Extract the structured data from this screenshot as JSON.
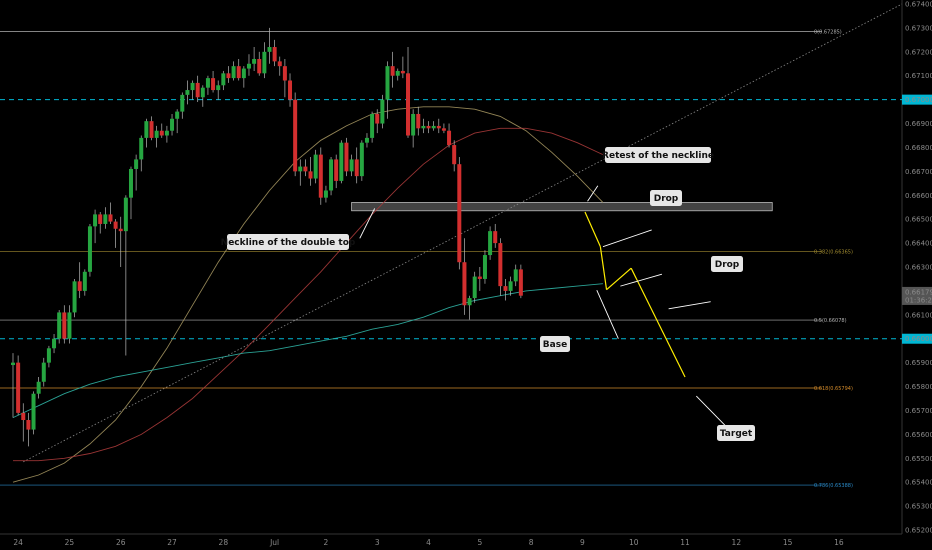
{
  "chart_data": {
    "type": "candlestick",
    "grid": false,
    "y_range": [
      0.652,
      0.674
    ],
    "y_ticks": [
      "0.67400",
      "0.67300",
      "0.67200",
      "0.67100",
      "0.67000",
      "0.66900",
      "0.66800",
      "0.66700",
      "0.66600",
      "0.66500",
      "0.66400",
      "0.66300",
      "0.66200",
      "0.66100",
      "0.66000",
      "0.65900",
      "0.65800",
      "0.65700",
      "0.65600",
      "0.65500",
      "0.65400",
      "0.65300",
      "0.65200"
    ],
    "x_labels": [
      {
        "label": "24",
        "bar": 1
      },
      {
        "label": "25",
        "bar": 11
      },
      {
        "label": "26",
        "bar": 21
      },
      {
        "label": "27",
        "bar": 31
      },
      {
        "label": "28",
        "bar": 41
      },
      {
        "label": "Jul",
        "bar": 51
      },
      {
        "label": "2",
        "bar": 61
      },
      {
        "label": "3",
        "bar": 71
      },
      {
        "label": "4",
        "bar": 81
      },
      {
        "label": "5",
        "bar": 91
      },
      {
        "label": "8",
        "bar": 101
      },
      {
        "label": "9",
        "bar": 111
      },
      {
        "label": "10",
        "bar": 121
      },
      {
        "label": "11",
        "bar": 131
      },
      {
        "label": "12",
        "bar": 141
      },
      {
        "label": "15",
        "bar": 151
      },
      {
        "label": "16",
        "bar": 161
      }
    ],
    "candles": [
      {
        "o": 0.6589,
        "h": 0.6594,
        "l": 0.6567,
        "c": 0.659
      },
      {
        "o": 0.659,
        "h": 0.6593,
        "l": 0.6568,
        "c": 0.6569
      },
      {
        "o": 0.6569,
        "h": 0.6573,
        "l": 0.6557,
        "c": 0.6566
      },
      {
        "o": 0.6566,
        "h": 0.6569,
        "l": 0.6555,
        "c": 0.6562
      },
      {
        "o": 0.6562,
        "h": 0.6578,
        "l": 0.656,
        "c": 0.6577
      },
      {
        "o": 0.6577,
        "h": 0.6584,
        "l": 0.6575,
        "c": 0.6582
      },
      {
        "o": 0.6582,
        "h": 0.6592,
        "l": 0.658,
        "c": 0.659
      },
      {
        "o": 0.659,
        "h": 0.6597,
        "l": 0.6588,
        "c": 0.6596
      },
      {
        "o": 0.6596,
        "h": 0.6602,
        "l": 0.6594,
        "c": 0.66
      },
      {
        "o": 0.66,
        "h": 0.6612,
        "l": 0.6598,
        "c": 0.6611
      },
      {
        "o": 0.6611,
        "h": 0.6614,
        "l": 0.6598,
        "c": 0.66
      },
      {
        "o": 0.66,
        "h": 0.6614,
        "l": 0.6598,
        "c": 0.6611
      },
      {
        "o": 0.6611,
        "h": 0.6625,
        "l": 0.6609,
        "c": 0.6624
      },
      {
        "o": 0.6624,
        "h": 0.6632,
        "l": 0.6617,
        "c": 0.662
      },
      {
        "o": 0.662,
        "h": 0.6629,
        "l": 0.6618,
        "c": 0.6628
      },
      {
        "o": 0.6628,
        "h": 0.6648,
        "l": 0.6626,
        "c": 0.6647
      },
      {
        "o": 0.6647,
        "h": 0.6654,
        "l": 0.664,
        "c": 0.6652
      },
      {
        "o": 0.6652,
        "h": 0.6653,
        "l": 0.6644,
        "c": 0.6648
      },
      {
        "o": 0.6648,
        "h": 0.6655,
        "l": 0.6646,
        "c": 0.6652
      },
      {
        "o": 0.6652,
        "h": 0.6657,
        "l": 0.6648,
        "c": 0.6649
      },
      {
        "o": 0.6649,
        "h": 0.665,
        "l": 0.6638,
        "c": 0.6646
      },
      {
        "o": 0.6646,
        "h": 0.6651,
        "l": 0.663,
        "c": 0.6645
      },
      {
        "o": 0.6645,
        "h": 0.666,
        "l": 0.6593,
        "c": 0.6659
      },
      {
        "o": 0.6659,
        "h": 0.6672,
        "l": 0.665,
        "c": 0.6671
      },
      {
        "o": 0.6671,
        "h": 0.6677,
        "l": 0.6662,
        "c": 0.6675
      },
      {
        "o": 0.6675,
        "h": 0.6685,
        "l": 0.667,
        "c": 0.6684
      },
      {
        "o": 0.6684,
        "h": 0.6692,
        "l": 0.668,
        "c": 0.6691
      },
      {
        "o": 0.6691,
        "h": 0.6693,
        "l": 0.6683,
        "c": 0.6684
      },
      {
        "o": 0.6684,
        "h": 0.6689,
        "l": 0.668,
        "c": 0.6687
      },
      {
        "o": 0.6687,
        "h": 0.669,
        "l": 0.6684,
        "c": 0.6685
      },
      {
        "o": 0.6685,
        "h": 0.6689,
        "l": 0.6682,
        "c": 0.6687
      },
      {
        "o": 0.6687,
        "h": 0.6694,
        "l": 0.6685,
        "c": 0.6692
      },
      {
        "o": 0.6692,
        "h": 0.6696,
        "l": 0.6686,
        "c": 0.6695
      },
      {
        "o": 0.6695,
        "h": 0.6703,
        "l": 0.6692,
        "c": 0.6702
      },
      {
        "o": 0.6702,
        "h": 0.6708,
        "l": 0.6698,
        "c": 0.6704
      },
      {
        "o": 0.6704,
        "h": 0.6708,
        "l": 0.67,
        "c": 0.6707
      },
      {
        "o": 0.6707,
        "h": 0.671,
        "l": 0.6699,
        "c": 0.6701
      },
      {
        "o": 0.6701,
        "h": 0.6706,
        "l": 0.6697,
        "c": 0.6705
      },
      {
        "o": 0.6705,
        "h": 0.671,
        "l": 0.6702,
        "c": 0.6709
      },
      {
        "o": 0.6709,
        "h": 0.6712,
        "l": 0.6703,
        "c": 0.6704
      },
      {
        "o": 0.6704,
        "h": 0.6708,
        "l": 0.67,
        "c": 0.6706
      },
      {
        "o": 0.6706,
        "h": 0.6712,
        "l": 0.6704,
        "c": 0.6711
      },
      {
        "o": 0.6711,
        "h": 0.6714,
        "l": 0.6707,
        "c": 0.6709
      },
      {
        "o": 0.6709,
        "h": 0.6716,
        "l": 0.6708,
        "c": 0.6714
      },
      {
        "o": 0.6714,
        "h": 0.6717,
        "l": 0.6708,
        "c": 0.6709
      },
      {
        "o": 0.6709,
        "h": 0.6714,
        "l": 0.6705,
        "c": 0.6713
      },
      {
        "o": 0.6713,
        "h": 0.6719,
        "l": 0.671,
        "c": 0.6715
      },
      {
        "o": 0.6715,
        "h": 0.6722,
        "l": 0.6712,
        "c": 0.6717
      },
      {
        "o": 0.6717,
        "h": 0.672,
        "l": 0.671,
        "c": 0.6711
      },
      {
        "o": 0.6711,
        "h": 0.6724,
        "l": 0.6709,
        "c": 0.672
      },
      {
        "o": 0.672,
        "h": 0.673,
        "l": 0.6715,
        "c": 0.6722
      },
      {
        "o": 0.6722,
        "h": 0.6725,
        "l": 0.6714,
        "c": 0.6716
      },
      {
        "o": 0.6716,
        "h": 0.6718,
        "l": 0.671,
        "c": 0.6714
      },
      {
        "o": 0.6714,
        "h": 0.6717,
        "l": 0.6701,
        "c": 0.6708
      },
      {
        "o": 0.6708,
        "h": 0.6711,
        "l": 0.6697,
        "c": 0.67
      },
      {
        "o": 0.67,
        "h": 0.6703,
        "l": 0.6668,
        "c": 0.667
      },
      {
        "o": 0.667,
        "h": 0.6675,
        "l": 0.6664,
        "c": 0.6672
      },
      {
        "o": 0.6672,
        "h": 0.6675,
        "l": 0.6668,
        "c": 0.667
      },
      {
        "o": 0.667,
        "h": 0.6676,
        "l": 0.6664,
        "c": 0.6667
      },
      {
        "o": 0.6667,
        "h": 0.6679,
        "l": 0.6665,
        "c": 0.6677
      },
      {
        "o": 0.6677,
        "h": 0.668,
        "l": 0.6656,
        "c": 0.6659
      },
      {
        "o": 0.6659,
        "h": 0.6664,
        "l": 0.6657,
        "c": 0.6662
      },
      {
        "o": 0.6662,
        "h": 0.6676,
        "l": 0.666,
        "c": 0.6675
      },
      {
        "o": 0.6675,
        "h": 0.6677,
        "l": 0.6663,
        "c": 0.6666
      },
      {
        "o": 0.6666,
        "h": 0.6683,
        "l": 0.6665,
        "c": 0.6682
      },
      {
        "o": 0.6682,
        "h": 0.6684,
        "l": 0.6668,
        "c": 0.667
      },
      {
        "o": 0.667,
        "h": 0.6677,
        "l": 0.6668,
        "c": 0.6675
      },
      {
        "o": 0.6675,
        "h": 0.668,
        "l": 0.6665,
        "c": 0.6668
      },
      {
        "o": 0.6668,
        "h": 0.6683,
        "l": 0.6666,
        "c": 0.6682
      },
      {
        "o": 0.6682,
        "h": 0.6686,
        "l": 0.668,
        "c": 0.6684
      },
      {
        "o": 0.6684,
        "h": 0.6695,
        "l": 0.6682,
        "c": 0.6694
      },
      {
        "o": 0.6694,
        "h": 0.6696,
        "l": 0.6686,
        "c": 0.669
      },
      {
        "o": 0.669,
        "h": 0.6702,
        "l": 0.6688,
        "c": 0.67
      },
      {
        "o": 0.67,
        "h": 0.6716,
        "l": 0.6692,
        "c": 0.6714
      },
      {
        "o": 0.6714,
        "h": 0.672,
        "l": 0.6705,
        "c": 0.671
      },
      {
        "o": 0.671,
        "h": 0.6713,
        "l": 0.6708,
        "c": 0.6712
      },
      {
        "o": 0.6712,
        "h": 0.6718,
        "l": 0.6709,
        "c": 0.6711
      },
      {
        "o": 0.6711,
        "h": 0.6722,
        "l": 0.6684,
        "c": 0.6685
      },
      {
        "o": 0.6685,
        "h": 0.6696,
        "l": 0.668,
        "c": 0.6694
      },
      {
        "o": 0.6694,
        "h": 0.6697,
        "l": 0.6685,
        "c": 0.6688
      },
      {
        "o": 0.6688,
        "h": 0.6692,
        "l": 0.6686,
        "c": 0.6689
      },
      {
        "o": 0.6689,
        "h": 0.6691,
        "l": 0.6686,
        "c": 0.6688
      },
      {
        "o": 0.6688,
        "h": 0.6691,
        "l": 0.6687,
        "c": 0.6689
      },
      {
        "o": 0.6689,
        "h": 0.6692,
        "l": 0.6686,
        "c": 0.6688
      },
      {
        "o": 0.6688,
        "h": 0.669,
        "l": 0.6686,
        "c": 0.6687
      },
      {
        "o": 0.6687,
        "h": 0.669,
        "l": 0.668,
        "c": 0.6681
      },
      {
        "o": 0.6681,
        "h": 0.6683,
        "l": 0.667,
        "c": 0.6673
      },
      {
        "o": 0.6673,
        "h": 0.6676,
        "l": 0.6629,
        "c": 0.6632
      },
      {
        "o": 0.6632,
        "h": 0.6642,
        "l": 0.661,
        "c": 0.6614
      },
      {
        "o": 0.6614,
        "h": 0.6618,
        "l": 0.6608,
        "c": 0.6617
      },
      {
        "o": 0.6617,
        "h": 0.6628,
        "l": 0.6615,
        "c": 0.6626
      },
      {
        "o": 0.6626,
        "h": 0.663,
        "l": 0.662,
        "c": 0.6625
      },
      {
        "o": 0.6625,
        "h": 0.6637,
        "l": 0.6623,
        "c": 0.6635
      },
      {
        "o": 0.6635,
        "h": 0.6647,
        "l": 0.6633,
        "c": 0.6645
      },
      {
        "o": 0.6645,
        "h": 0.6648,
        "l": 0.6638,
        "c": 0.664
      },
      {
        "o": 0.664,
        "h": 0.6642,
        "l": 0.6618,
        "c": 0.6622
      },
      {
        "o": 0.6622,
        "h": 0.6625,
        "l": 0.6616,
        "c": 0.662
      },
      {
        "o": 0.662,
        "h": 0.6626,
        "l": 0.6618,
        "c": 0.6624
      },
      {
        "o": 0.6624,
        "h": 0.6631,
        "l": 0.6622,
        "c": 0.6629
      },
      {
        "o": 0.6629,
        "h": 0.6631,
        "l": 0.6617,
        "c": 0.6618
      }
    ],
    "moving_averages": [
      {
        "color": "#a3935f",
        "values": [
          0.654,
          0.6543,
          0.6548,
          0.6556,
          0.6566,
          0.658,
          0.6596,
          0.6614,
          0.6632,
          0.6648,
          0.6662,
          0.6674,
          0.6683,
          0.6689,
          0.6694,
          0.6696,
          0.6697,
          0.6697,
          0.6696,
          0.6693,
          0.6687,
          0.6678,
          0.6668,
          0.6657
        ]
      },
      {
        "color": "#a83a3a",
        "values": [
          0.6549,
          0.6549,
          0.655,
          0.6552,
          0.6555,
          0.656,
          0.6567,
          0.6575,
          0.6585,
          0.6595,
          0.6606,
          0.6617,
          0.6628,
          0.664,
          0.6652,
          0.6663,
          0.6673,
          0.6681,
          0.6686,
          0.6688,
          0.6688,
          0.6686,
          0.6682,
          0.6677
        ]
      },
      {
        "color": "#2fb3a4",
        "values": [
          0.6567,
          0.6572,
          0.6577,
          0.6581,
          0.6584,
          0.6586,
          0.6588,
          0.659,
          0.6592,
          0.6594,
          0.6595,
          0.6597,
          0.6599,
          0.6601,
          0.6604,
          0.6606,
          0.6609,
          0.6613,
          0.6616,
          0.6618,
          0.662,
          0.6621,
          0.6622,
          0.6623
        ]
      }
    ],
    "fib_levels": [
      {
        "label": "0(0.67285)",
        "value": 0.67285,
        "color": "#b0b0b0"
      },
      {
        "label": "0.382(0.66365)",
        "value": 0.66365,
        "color": "#a08a30"
      },
      {
        "label": "0.5(0.66078)",
        "value": 0.66078,
        "color": "#b0b0b0"
      },
      {
        "label": "0.618(0.65794)",
        "value": 0.65794,
        "color": "#d28a2a"
      },
      {
        "label": "0.786(0.65388)",
        "value": 0.65388,
        "color": "#2a8ac8"
      }
    ],
    "horizontal_levels": [
      {
        "label": "0.67000",
        "value": 0.67,
        "color": "#00b7d4"
      },
      {
        "label": "0.66000",
        "value": 0.66,
        "color": "#00b7d4"
      }
    ],
    "current_price": {
      "label": "0.66179",
      "countdown": "01:36:26",
      "value": 0.66179
    },
    "annotations": [
      {
        "text": "Neckline of the double top"
      },
      {
        "text": "Retest of the neckline"
      },
      {
        "text": "Drop"
      },
      {
        "text": "Drop"
      },
      {
        "text": "Base"
      },
      {
        "text": "Target"
      }
    ],
    "colors": {
      "up": "#26a641",
      "down": "#d32f2f",
      "projection": "#ffee00",
      "label_bg": "#e6e6e6"
    }
  }
}
